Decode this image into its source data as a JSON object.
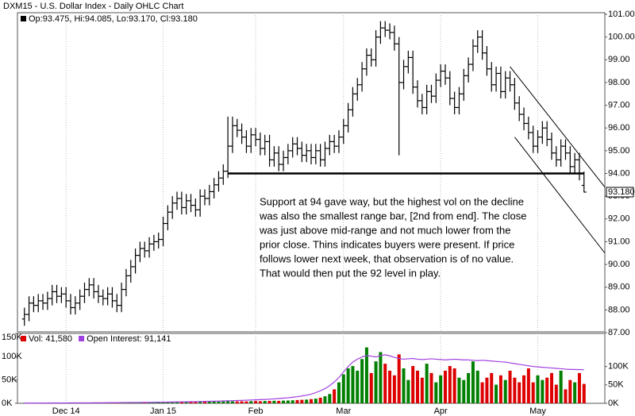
{
  "chart_data": [
    {
      "type": "ohlc",
      "title": "DXM15 - U.S. Dollar Index - Daily OHLC Chart",
      "subtitle": "Op:93.475, Hi:94.085, Lo:93.170, Cl:93.180",
      "color": "#000000",
      "grid": true,
      "xlim": [
        -1.5,
        125.5
      ],
      "xticks": [
        {
          "value": 9,
          "label": "Dec 14"
        },
        {
          "value": 30,
          "label": "Jan 15"
        },
        {
          "value": 50,
          "label": "Feb"
        },
        {
          "value": 69,
          "label": "Mar"
        },
        {
          "value": 90,
          "label": "Apr"
        },
        {
          "value": 111,
          "label": "May"
        }
      ],
      "ylim": [
        87,
        101
      ],
      "yticks": [
        {
          "value": 87,
          "label": "87.00"
        },
        {
          "value": 88,
          "label": "88.00"
        },
        {
          "value": 89,
          "label": "89.00"
        },
        {
          "value": 90,
          "label": "90.00"
        },
        {
          "value": 91,
          "label": "91.00"
        },
        {
          "value": 92,
          "label": "92.00"
        },
        {
          "value": 93,
          "label": "93.00"
        },
        {
          "value": 94,
          "label": "94.00"
        },
        {
          "value": 95,
          "label": "95.00"
        },
        {
          "value": 96,
          "label": "96.00"
        },
        {
          "value": 97,
          "label": "97.00"
        },
        {
          "value": 98,
          "label": "98.00"
        },
        {
          "value": 99,
          "label": "99.00"
        },
        {
          "value": 100,
          "label": "100.00"
        },
        {
          "value": 101,
          "label": "101.00"
        }
      ],
      "open": [
        87.6,
        87.8,
        88.3,
        88.2,
        88.4,
        88.3,
        88.5,
        88.8,
        88.6,
        88.7,
        88.4,
        88.1,
        88.3,
        88.6,
        88.9,
        89.1,
        88.8,
        88.6,
        88.5,
        88.7,
        88.4,
        88.2,
        88.9,
        89.5,
        89.9,
        90.4,
        90.7,
        90.6,
        90.9,
        91.0,
        91.1,
        91.8,
        92.3,
        92.7,
        92.9,
        92.5,
        92.8,
        92.6,
        92.4,
        93.0,
        92.9,
        93.2,
        93.5,
        93.8,
        94.1,
        95.2,
        96.1,
        95.9,
        95.6,
        95.2,
        95.7,
        95.5,
        95.1,
        95.4,
        94.6,
        94.9,
        94.4,
        94.7,
        95.0,
        95.3,
        95.1,
        94.8,
        95.0,
        94.7,
        95.0,
        94.6,
        95.1,
        95.4,
        95.2,
        95.6,
        96.1,
        96.8,
        97.5,
        97.9,
        98.6,
        99.2,
        99.0,
        100.0,
        100.4,
        100.3,
        100.2,
        99.7,
        98.0,
        98.7,
        99.1,
        97.8,
        97.2,
        96.9,
        97.6,
        97.4,
        98.1,
        98.5,
        98.2,
        97.3,
        96.9,
        97.5,
        98.3,
        98.8,
        99.6,
        100.0,
        99.3,
        98.6,
        97.9,
        98.4,
        97.6,
        98.2,
        97.9,
        97.1,
        96.6,
        96.2,
        95.8,
        95.2,
        95.6,
        96.0,
        95.5,
        94.9,
        94.6,
        95.2,
        94.9,
        94.3,
        94.6,
        93.475
      ],
      "high": [
        88.1,
        88.6,
        88.6,
        88.7,
        88.7,
        88.8,
        89.1,
        89.1,
        89.0,
        89.0,
        88.7,
        88.6,
        88.9,
        89.2,
        89.4,
        89.4,
        89.1,
        88.9,
        89.0,
        89.0,
        88.7,
        89.2,
        89.8,
        90.2,
        90.7,
        91.0,
        91.0,
        91.2,
        91.3,
        91.4,
        92.1,
        92.6,
        93.0,
        93.2,
        93.2,
        93.1,
        93.1,
        92.9,
        93.3,
        93.3,
        93.5,
        93.8,
        94.1,
        94.4,
        96.5,
        96.5,
        96.4,
        96.2,
        95.9,
        96.0,
        96.0,
        95.8,
        95.7,
        95.7,
        95.2,
        95.2,
        95.0,
        95.3,
        95.6,
        95.6,
        95.4,
        95.3,
        95.3,
        95.3,
        95.3,
        95.4,
        95.7,
        95.7,
        95.9,
        96.4,
        97.1,
        97.8,
        98.2,
        98.9,
        99.5,
        99.5,
        100.3,
        100.7,
        100.7,
        100.6,
        100.5,
        100.0,
        99.0,
        99.4,
        99.4,
        98.1,
        97.5,
        97.9,
        97.9,
        98.4,
        98.8,
        98.8,
        98.5,
        97.6,
        97.8,
        98.6,
        99.1,
        99.9,
        100.3,
        100.3,
        99.6,
        98.9,
        98.7,
        98.7,
        98.5,
        98.5,
        98.2,
        97.4,
        96.9,
        96.5,
        96.1,
        95.9,
        96.3,
        96.3,
        95.8,
        95.2,
        95.5,
        95.5,
        95.2,
        94.9,
        94.9,
        94.085
      ],
      "low": [
        87.3,
        87.5,
        87.9,
        87.9,
        88.0,
        88.0,
        88.2,
        88.3,
        88.3,
        88.1,
        87.8,
        87.8,
        88.0,
        88.3,
        88.6,
        88.5,
        88.3,
        88.2,
        88.2,
        88.1,
        87.9,
        87.9,
        88.6,
        89.2,
        89.6,
        90.1,
        90.3,
        90.3,
        90.6,
        90.7,
        90.8,
        91.5,
        92.0,
        92.4,
        92.2,
        92.2,
        92.3,
        92.1,
        92.1,
        92.6,
        92.6,
        92.9,
        93.2,
        93.5,
        93.8,
        94.9,
        95.6,
        95.3,
        94.9,
        94.9,
        95.2,
        94.8,
        94.8,
        94.3,
        94.3,
        94.1,
        94.1,
        94.4,
        94.7,
        94.8,
        94.5,
        94.5,
        94.4,
        94.4,
        94.3,
        94.3,
        94.8,
        94.9,
        94.9,
        95.3,
        95.8,
        96.5,
        97.2,
        97.6,
        98.3,
        98.7,
        98.7,
        99.7,
        100.0,
        99.9,
        99.4,
        94.8,
        97.7,
        98.4,
        97.5,
        96.9,
        96.6,
        96.6,
        97.1,
        97.1,
        97.8,
        97.9,
        97.0,
        96.6,
        96.6,
        97.2,
        98.0,
        98.5,
        99.3,
        99.0,
        98.3,
        97.6,
        97.6,
        97.3,
        97.3,
        97.6,
        96.8,
        96.3,
        95.9,
        95.5,
        94.9,
        94.9,
        95.3,
        95.2,
        94.6,
        94.3,
        94.3,
        94.6,
        94.0,
        94.0,
        93.7,
        93.17
      ],
      "close": [
        87.8,
        88.3,
        88.2,
        88.4,
        88.3,
        88.5,
        88.8,
        88.6,
        88.7,
        88.4,
        88.1,
        88.3,
        88.6,
        88.9,
        89.1,
        88.8,
        88.6,
        88.5,
        88.7,
        88.4,
        88.2,
        88.9,
        89.5,
        89.9,
        90.4,
        90.7,
        90.6,
        90.9,
        91.0,
        91.1,
        91.8,
        92.3,
        92.7,
        92.9,
        92.5,
        92.8,
        92.6,
        92.4,
        93.0,
        92.9,
        93.2,
        93.5,
        93.8,
        94.1,
        95.2,
        96.1,
        95.9,
        95.6,
        95.2,
        95.7,
        95.5,
        95.1,
        95.4,
        94.6,
        94.9,
        94.4,
        94.7,
        95.0,
        95.3,
        95.1,
        94.8,
        95.0,
        94.7,
        95.0,
        94.6,
        95.1,
        95.4,
        95.2,
        95.6,
        96.1,
        96.8,
        97.5,
        97.9,
        98.6,
        99.2,
        99.0,
        100.0,
        100.4,
        100.3,
        100.2,
        99.7,
        98.0,
        98.7,
        99.1,
        97.8,
        97.2,
        96.9,
        97.6,
        97.4,
        98.1,
        98.5,
        98.2,
        97.3,
        96.9,
        97.5,
        98.3,
        98.8,
        99.6,
        100.0,
        99.3,
        98.6,
        97.9,
        98.4,
        97.6,
        98.2,
        97.9,
        97.1,
        96.6,
        96.2,
        95.8,
        95.2,
        95.6,
        96.0,
        95.5,
        94.9,
        94.6,
        95.2,
        94.9,
        94.3,
        94.6,
        94.0,
        93.18
      ],
      "price_marker": {
        "value": 93.18,
        "label": "93.180"
      },
      "support": {
        "value": 94,
        "x": [
          44,
          121
        ]
      },
      "channel": [
        {
          "x": [
            105,
            125.5
          ],
          "y": [
            98.7,
            93.4
          ]
        },
        {
          "x": [
            106,
            125.5
          ],
          "y": [
            95.6,
            90.5
          ]
        }
      ],
      "annotation": [
        "Support at 94 gave way, but the highest vol on the decline",
        "was also the smallest range bar, [2nd from end].   The close",
        "was just above mid-range and  not much lower from the",
        "prior close.  Thins indicates buyers were present.  If price",
        "follows lower next week, that observation is of no value.",
        "That would then put the 92 level in play."
      ]
    },
    {
      "type": "volume",
      "up_color": "#008000",
      "down_color": "#dd0000",
      "xlim": [
        -1.5,
        125.5
      ],
      "ylim": [
        0,
        150000
      ],
      "yticks": [
        {
          "value": 0,
          "label": "0K"
        },
        {
          "value": 50000,
          "label": "50K"
        },
        {
          "value": 100000,
          "label": "100K"
        },
        {
          "value": 150000,
          "label": "150K"
        }
      ],
      "y2lim": [
        0,
        190000
      ],
      "y2ticks": [
        {
          "value": 0,
          "label": "0K"
        },
        {
          "value": 50000,
          "label": "50K"
        },
        {
          "value": 100000,
          "label": "100K"
        }
      ],
      "series": [
        {
          "name": "Vol: 41,580",
          "color": "#dd0000",
          "values": [
            1000,
            1000,
            1200,
            1000,
            1500,
            1200,
            1300,
            1100,
            1400,
            1200,
            1300,
            1500,
            1400,
            1600,
            1500,
            1700,
            1600,
            1500,
            1800,
            1700,
            1600,
            1900,
            2000,
            2200,
            2100,
            2300,
            2000,
            2400,
            2200,
            2500,
            2600,
            2800,
            2700,
            3000,
            2900,
            3100,
            3200,
            3000,
            3400,
            3300,
            3500,
            3700,
            3600,
            4000,
            4500,
            4200,
            4000,
            4300,
            4100,
            4600,
            4800,
            4500,
            5000,
            5200,
            5500,
            5300,
            5800,
            6000,
            6500,
            7000,
            7500,
            8000,
            9000,
            10000,
            12000,
            15000,
            20000,
            30000,
            45000,
            62000,
            75000,
            80000,
            70000,
            95000,
            120000,
            65000,
            90000,
            110000,
            85000,
            70000,
            60000,
            105000,
            75000,
            50000,
            80000,
            70000,
            55000,
            85000,
            65000,
            45000,
            60000,
            70000,
            80000,
            75000,
            55000,
            50000,
            65000,
            90000,
            70000,
            45000,
            55000,
            65000,
            40000,
            60000,
            50000,
            70000,
            55000,
            45000,
            60000,
            75000,
            45000,
            60000,
            50000,
            55000,
            65000,
            40000,
            70000,
            30000,
            50000,
            45000,
            65000,
            41580
          ]
        },
        {
          "name": "Open Interest: 91,141",
          "color": "#a040e0",
          "axis": "y2",
          "values": [
            500,
            550,
            600,
            650,
            700,
            750,
            800,
            850,
            900,
            950,
            1000,
            1050,
            1100,
            1150,
            1200,
            1300,
            1400,
            1500,
            1600,
            1700,
            1800,
            1900,
            2000,
            2100,
            2200,
            2300,
            2400,
            2500,
            2700,
            2900,
            3100,
            3300,
            3500,
            3700,
            3900,
            4100,
            4300,
            4500,
            4800,
            5100,
            5400,
            5700,
            6000,
            6400,
            6800,
            7200,
            7600,
            8000,
            8500,
            9000,
            9500,
            10000,
            10600,
            11200,
            12000,
            13000,
            14000,
            15000,
            16500,
            18000,
            20000,
            22000,
            25000,
            29000,
            34000,
            40000,
            48000,
            58000,
            70000,
            85000,
            100000,
            112000,
            120000,
            126000,
            130000,
            128000,
            126000,
            130000,
            132000,
            129000,
            125000,
            122000,
            120000,
            121000,
            122000,
            120000,
            119000,
            120000,
            121000,
            120000,
            119000,
            118000,
            119000,
            120000,
            119000,
            118000,
            118000,
            117000,
            116000,
            117000,
            116000,
            115000,
            114000,
            113000,
            112000,
            110000,
            108000,
            106000,
            104000,
            102000,
            100000,
            99000,
            98000,
            97000,
            96000,
            95000,
            94000,
            93000,
            92000,
            92000,
            91500,
            91141
          ]
        }
      ]
    }
  ]
}
